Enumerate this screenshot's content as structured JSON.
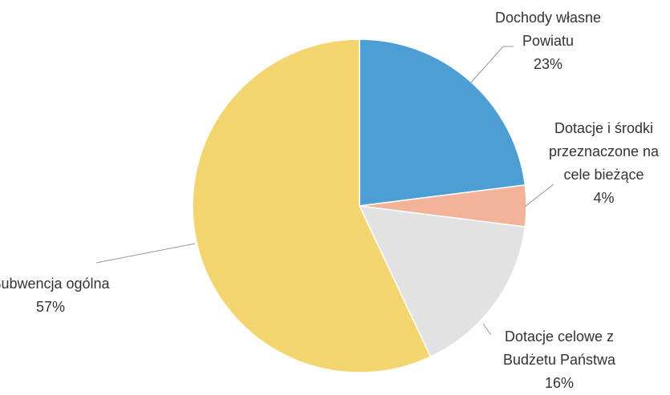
{
  "chart_data": {
    "type": "pie",
    "categories": [
      "Dochody własne Powiatu",
      "Dotacje i środki przeznaczone na cele bieżące",
      "Dotacje celowe z Budżetu Państwa",
      "Subwencja ogólna"
    ],
    "values": [
      23,
      4,
      16,
      57
    ],
    "value_labels": [
      "23%",
      "4%",
      "16%",
      "57%"
    ],
    "colors": [
      "#4b9fd5",
      "#f2b398",
      "#e2e2e2",
      "#f4d46e"
    ]
  }
}
